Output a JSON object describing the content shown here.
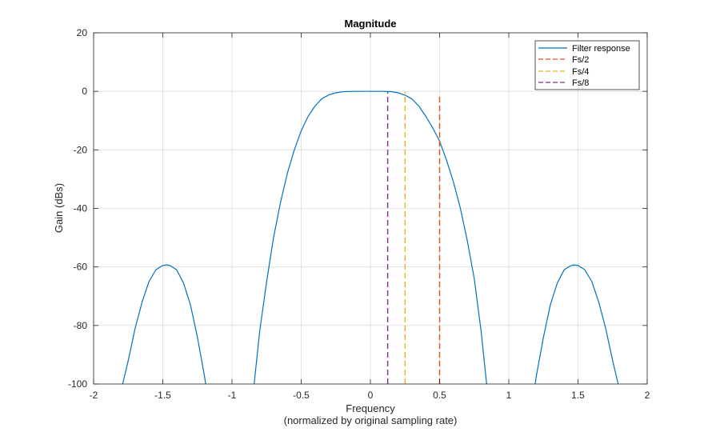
{
  "chart_data": {
    "type": "line",
    "title": "Magnitude",
    "xlabel": "Frequency",
    "xlabel_line2": "(normalized by original sampling rate)",
    "ylabel": "Gain (dBs)",
    "xlim": [
      -2,
      2
    ],
    "ylim": [
      -100,
      20
    ],
    "xticks": [
      -2,
      -1.5,
      -1,
      -0.5,
      0,
      0.5,
      1,
      1.5,
      2
    ],
    "xtick_labels": [
      "-2",
      "-1.5",
      "-1",
      "-0.5",
      "0",
      "0.5",
      "1",
      "1.5",
      "2"
    ],
    "yticks": [
      20,
      0,
      -20,
      -40,
      -60,
      -80,
      -100
    ],
    "ytick_labels": [
      "20",
      "0",
      "-20",
      "-40",
      "-60",
      "-80",
      "-100"
    ],
    "grid": true,
    "legend_position": "top-right",
    "series": [
      {
        "name": "Filter response",
        "color": "#0072BD",
        "style": "solid",
        "segments": [
          {
            "x": [
              -1.79,
              -1.75,
              -1.7,
              -1.65,
              -1.6,
              -1.55,
              -1.5,
              -1.47,
              -1.45,
              -1.4,
              -1.35,
              -1.3,
              -1.25,
              -1.2,
              -1.19
            ],
            "y": [
              -100,
              -92,
              -81,
              -72,
              -65,
              -61,
              -59.5,
              -59.3,
              -59.5,
              -61,
              -65.5,
              -73,
              -84,
              -97,
              -100
            ]
          },
          {
            "x": [
              -0.84,
              -0.8,
              -0.75,
              -0.7,
              -0.65,
              -0.6,
              -0.55,
              -0.5,
              -0.45,
              -0.4,
              -0.35,
              -0.3,
              -0.25,
              -0.2,
              -0.15,
              -0.1,
              -0.05,
              0,
              0.05,
              0.1,
              0.15,
              0.2,
              0.25,
              0.3,
              0.35,
              0.4,
              0.45,
              0.5,
              0.55,
              0.6,
              0.65,
              0.7,
              0.75,
              0.8,
              0.84
            ],
            "y": [
              -100,
              -82,
              -65,
              -50,
              -38,
              -28,
              -20,
              -13.5,
              -8.5,
              -5,
              -2.5,
              -1.2,
              -0.5,
              -0.15,
              -0.03,
              0,
              0,
              0,
              0,
              0,
              -0.1,
              -0.5,
              -1.3,
              -2.6,
              -5,
              -8.5,
              -12.5,
              -17,
              -23.5,
              -31,
              -40,
              -51,
              -64,
              -82,
              -100
            ]
          },
          {
            "x": [
              1.19,
              1.2,
              1.25,
              1.3,
              1.35,
              1.4,
              1.45,
              1.47,
              1.5,
              1.55,
              1.6,
              1.65,
              1.7,
              1.75,
              1.79
            ],
            "y": [
              -100,
              -97,
              -84,
              -73,
              -65.5,
              -61,
              -59.5,
              -59.3,
              -59.5,
              -61,
              -65,
              -72,
              -81,
              -92,
              -100
            ]
          }
        ]
      },
      {
        "name": "Fs/2",
        "color": "#D95319",
        "style": "dashed",
        "segments": [
          {
            "x": [
              0.5,
              0.5
            ],
            "y": [
              -100,
              -1
            ]
          }
        ]
      },
      {
        "name": "Fs/4",
        "color": "#EDB120",
        "style": "dashed",
        "segments": [
          {
            "x": [
              0.25,
              0.25
            ],
            "y": [
              -100,
              -0.2
            ]
          }
        ]
      },
      {
        "name": "Fs/8",
        "color": "#7E2F8E",
        "style": "dashed",
        "segments": [
          {
            "x": [
              0.125,
              0.125
            ],
            "y": [
              -100,
              -0.2
            ]
          }
        ]
      }
    ]
  }
}
